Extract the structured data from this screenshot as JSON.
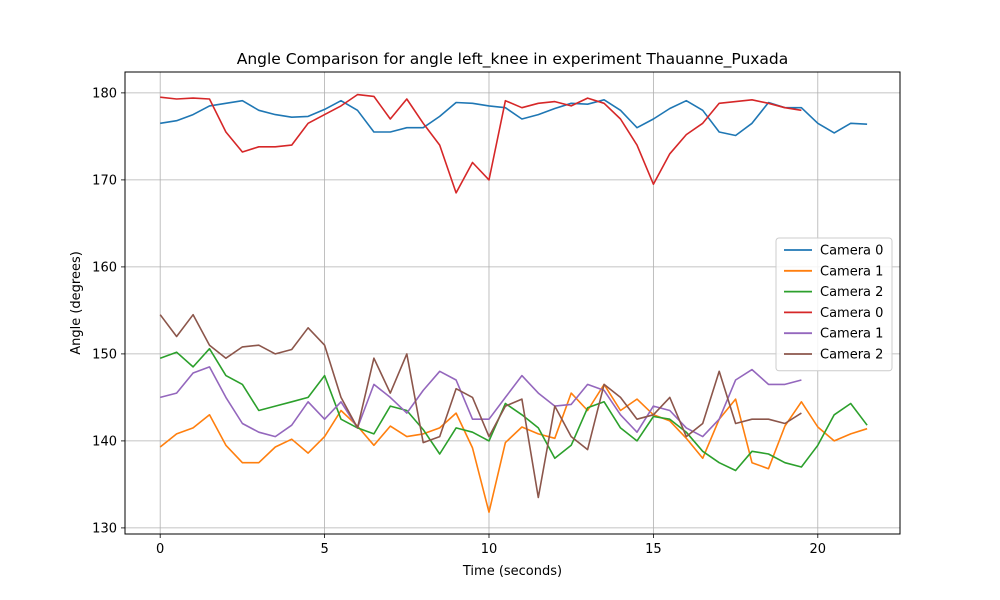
{
  "chart_data": {
    "type": "line",
    "title": "Angle Comparison for angle left_knee in experiment Thauanne_Puxada",
    "xlabel": "Time (seconds)",
    "ylabel": "Angle (degrees)",
    "xlim": [
      -1.07,
      22.5
    ],
    "ylim": [
      129.3,
      182.4
    ],
    "xticks": [
      0,
      5,
      10,
      15,
      20
    ],
    "yticks": [
      130,
      140,
      150,
      160,
      170,
      180
    ],
    "grid": true,
    "legend_position": "center-right",
    "series": [
      {
        "name": "Camera 0",
        "color": "#1f77b4",
        "x": [
          0,
          0.5,
          1,
          1.5,
          2,
          2.5,
          3,
          3.5,
          4,
          4.5,
          5,
          5.5,
          6,
          6.5,
          7,
          7.5,
          8,
          8.5,
          9,
          9.5,
          10,
          10.5,
          11,
          11.5,
          12,
          12.5,
          13,
          13.5,
          14,
          14.5,
          15,
          15.5,
          16,
          16.5,
          17,
          17.5,
          18,
          18.5,
          19,
          19.5,
          20,
          20.5,
          21,
          21.5
        ],
        "y": [
          176.5,
          176.8,
          177.5,
          178.5,
          178.8,
          179.1,
          178,
          177.5,
          177.2,
          177.3,
          178.1,
          179.1,
          178,
          175.5,
          175.5,
          176,
          176,
          177.3,
          178.9,
          178.8,
          178.5,
          178.3,
          177,
          177.5,
          178.2,
          178.8,
          178.7,
          179.2,
          178,
          176,
          177,
          178.2,
          179.1,
          178,
          175.5,
          175.1,
          176.5,
          178.9,
          178.3,
          178.3,
          176.5,
          175.4,
          176.5,
          176.4
        ]
      },
      {
        "name": "Camera 1",
        "color": "#ff7f0e",
        "x": [
          0,
          0.5,
          1,
          1.5,
          2,
          2.5,
          3,
          3.5,
          4,
          4.5,
          5,
          5.5,
          6,
          6.5,
          7,
          7.5,
          8,
          8.5,
          9,
          9.5,
          10,
          10.5,
          11,
          11.5,
          12,
          12.5,
          13,
          13.5,
          14,
          14.5,
          15,
          15.5,
          16,
          16.5,
          17,
          17.5,
          18,
          18.5,
          19,
          19.5,
          20,
          20.5,
          21,
          21.5
        ],
        "y": [
          139.3,
          140.8,
          141.5,
          143,
          139.5,
          137.5,
          137.5,
          139.3,
          140.2,
          138.6,
          140.5,
          143.5,
          141.7,
          139.5,
          141.7,
          140.5,
          140.8,
          141.5,
          143.2,
          139.2,
          131.8,
          139.8,
          141.6,
          140.8,
          140.3,
          145.5,
          143.5,
          146.5,
          143.5,
          144.8,
          143,
          142.3,
          140.3,
          138,
          142.5,
          144.8,
          137.5,
          136.8,
          141.7,
          144.5,
          141.6,
          140,
          140.8,
          141.4
        ]
      },
      {
        "name": "Camera 2",
        "color": "#2ca02c",
        "x": [
          0,
          0.5,
          1,
          1.5,
          2,
          2.5,
          3,
          3.5,
          4,
          4.5,
          5,
          5.5,
          6,
          6.5,
          7,
          7.5,
          8,
          8.5,
          9,
          9.5,
          10,
          10.5,
          11,
          11.5,
          12,
          12.5,
          13,
          13.5,
          14,
          14.5,
          15,
          15.5,
          16,
          16.5,
          17,
          17.5,
          18,
          18.5,
          19,
          19.5,
          20,
          20.5,
          21,
          21.5
        ],
        "y": [
          149.5,
          150.2,
          148.5,
          150.6,
          147.5,
          146.5,
          143.5,
          144,
          144.5,
          145,
          147.5,
          142.5,
          141.5,
          140.8,
          144,
          143.5,
          141.3,
          138.5,
          141.5,
          141,
          140,
          144.3,
          143,
          141.5,
          138,
          139.5,
          143.8,
          144.5,
          141.5,
          140,
          142.8,
          142.5,
          141,
          138.8,
          137.5,
          136.6,
          138.8,
          138.5,
          137.5,
          137,
          139.5,
          143,
          144.3,
          141.8
        ]
      },
      {
        "name": "Camera 0",
        "color": "#d62728",
        "x": [
          0,
          0.5,
          1,
          1.5,
          2,
          2.5,
          3,
          3.5,
          4,
          4.5,
          5,
          5.5,
          6,
          6.5,
          7,
          7.5,
          8,
          8.5,
          9,
          9.5,
          10,
          10.5,
          11,
          11.5,
          12,
          12.5,
          13,
          13.5,
          14,
          14.5,
          15,
          15.5,
          16,
          16.5,
          17,
          17.5,
          18,
          18.5,
          19,
          19.5
        ],
        "y": [
          179.5,
          179.3,
          179.4,
          179.3,
          175.5,
          173.2,
          173.8,
          173.8,
          174,
          176.5,
          177.5,
          178.5,
          179.8,
          179.6,
          177,
          179.3,
          176.5,
          174,
          168.5,
          172,
          170,
          179.1,
          178.3,
          178.8,
          179,
          178.5,
          179.4,
          178.8,
          177,
          174,
          169.5,
          173,
          175.2,
          176.5,
          178.8,
          179,
          179.2,
          178.8,
          178.3,
          178
        ]
      },
      {
        "name": "Camera 1",
        "color": "#9467bd",
        "x": [
          0,
          0.5,
          1,
          1.5,
          2,
          2.5,
          3,
          3.5,
          4,
          4.5,
          5,
          5.5,
          6,
          6.5,
          7,
          7.5,
          8,
          8.5,
          9,
          9.5,
          10,
          10.5,
          11,
          11.5,
          12,
          12.5,
          13,
          13.5,
          14,
          14.5,
          15,
          15.5,
          16,
          16.5,
          17,
          17.5,
          18,
          18.5,
          19,
          19.5
        ],
        "y": [
          145,
          145.5,
          147.8,
          148.5,
          145,
          142,
          141,
          140.5,
          141.8,
          144.5,
          142.5,
          144.5,
          141.5,
          146.5,
          145,
          143.2,
          145.8,
          148,
          147,
          142.5,
          142.5,
          145,
          147.5,
          145.5,
          144,
          144.2,
          146.5,
          145.8,
          143,
          141,
          144,
          143.5,
          141.5,
          140.5,
          142.5,
          147,
          148.2,
          146.5,
          146.5,
          147
        ]
      },
      {
        "name": "Camera 2",
        "color": "#8c564b",
        "x": [
          0,
          0.5,
          1,
          1.5,
          2,
          2.5,
          3,
          3.5,
          4,
          4.5,
          5,
          5.5,
          6,
          6.5,
          7,
          7.5,
          8,
          8.5,
          9,
          9.5,
          10,
          10.5,
          11,
          11.5,
          12,
          12.5,
          13,
          13.5,
          14,
          14.5,
          15,
          15.5,
          16,
          16.5,
          17,
          17.5,
          18,
          18.5,
          19,
          19.5
        ],
        "y": [
          154.5,
          152,
          154.5,
          151,
          149.5,
          150.8,
          151,
          150,
          150.5,
          153,
          151,
          145,
          141.5,
          149.5,
          145.5,
          150,
          139.8,
          140.5,
          146,
          145,
          140.5,
          144,
          144.8,
          133.5,
          144,
          140.5,
          139,
          146.5,
          145,
          142.5,
          143,
          145,
          140.5,
          142,
          148,
          142,
          142.5,
          142.5,
          142,
          143.2
        ]
      }
    ]
  }
}
